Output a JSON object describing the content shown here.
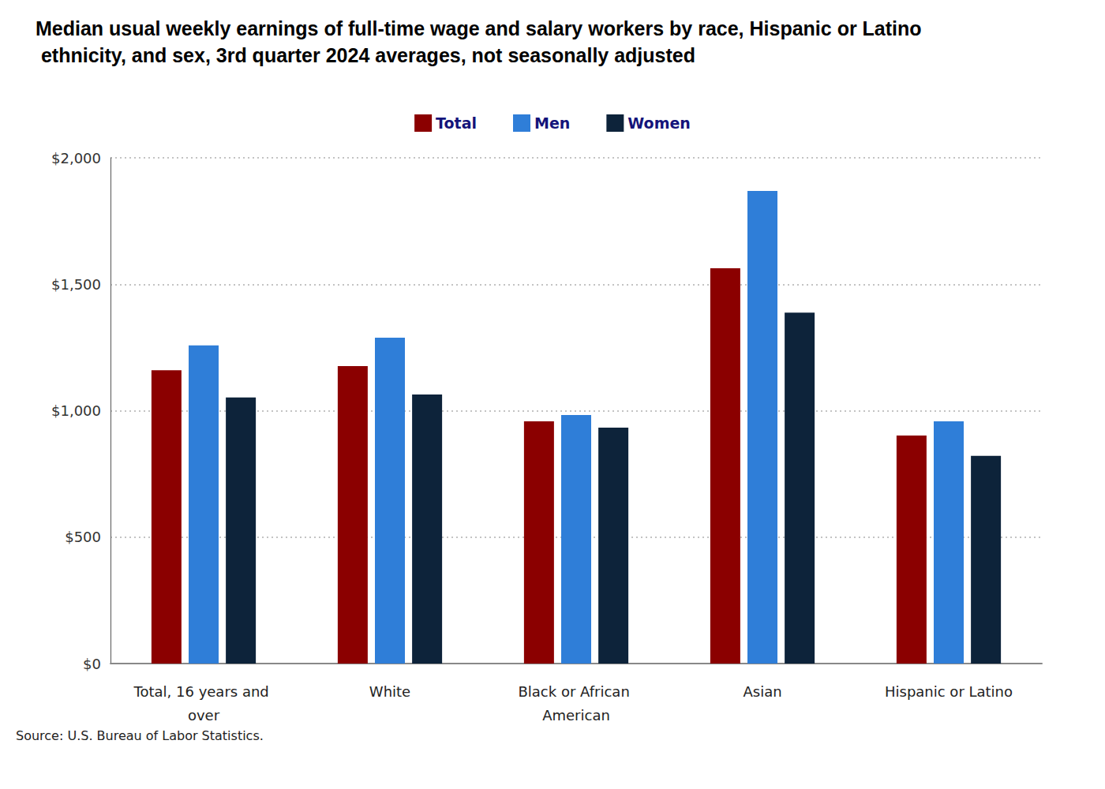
{
  "chart_data": {
    "type": "bar",
    "title": "Median usual weekly earnings of full-time wage and salary workers by race, Hispanic or Latino ethnicity, and sex, 3rd quarter 2024 averages, not seasonally adjusted",
    "source": "Source: U.S. Bureau of Labor Statistics.",
    "categories": [
      "Total, 16 years and over",
      "White",
      "Black or African American",
      "Asian",
      "Hispanic or Latino"
    ],
    "series": [
      {
        "name": "Total",
        "color": "#8b0000",
        "values": [
          1160,
          1176,
          958,
          1563,
          902
        ]
      },
      {
        "name": "Men",
        "color": "#2f7ed8",
        "values": [
          1258,
          1289,
          983,
          1869,
          958
        ]
      },
      {
        "name": "Women",
        "color": "#0d233a",
        "values": [
          1052,
          1064,
          933,
          1388,
          821
        ]
      }
    ],
    "ylim": [
      0,
      2000
    ],
    "yticks": [
      {
        "value": 0,
        "label": "$0"
      },
      {
        "value": 500,
        "label": "$500"
      },
      {
        "value": 1000,
        "label": "$1,000"
      },
      {
        "value": 1500,
        "label": "$1,500"
      },
      {
        "value": 2000,
        "label": "$2,000"
      }
    ],
    "grid": true,
    "legend": "top"
  }
}
